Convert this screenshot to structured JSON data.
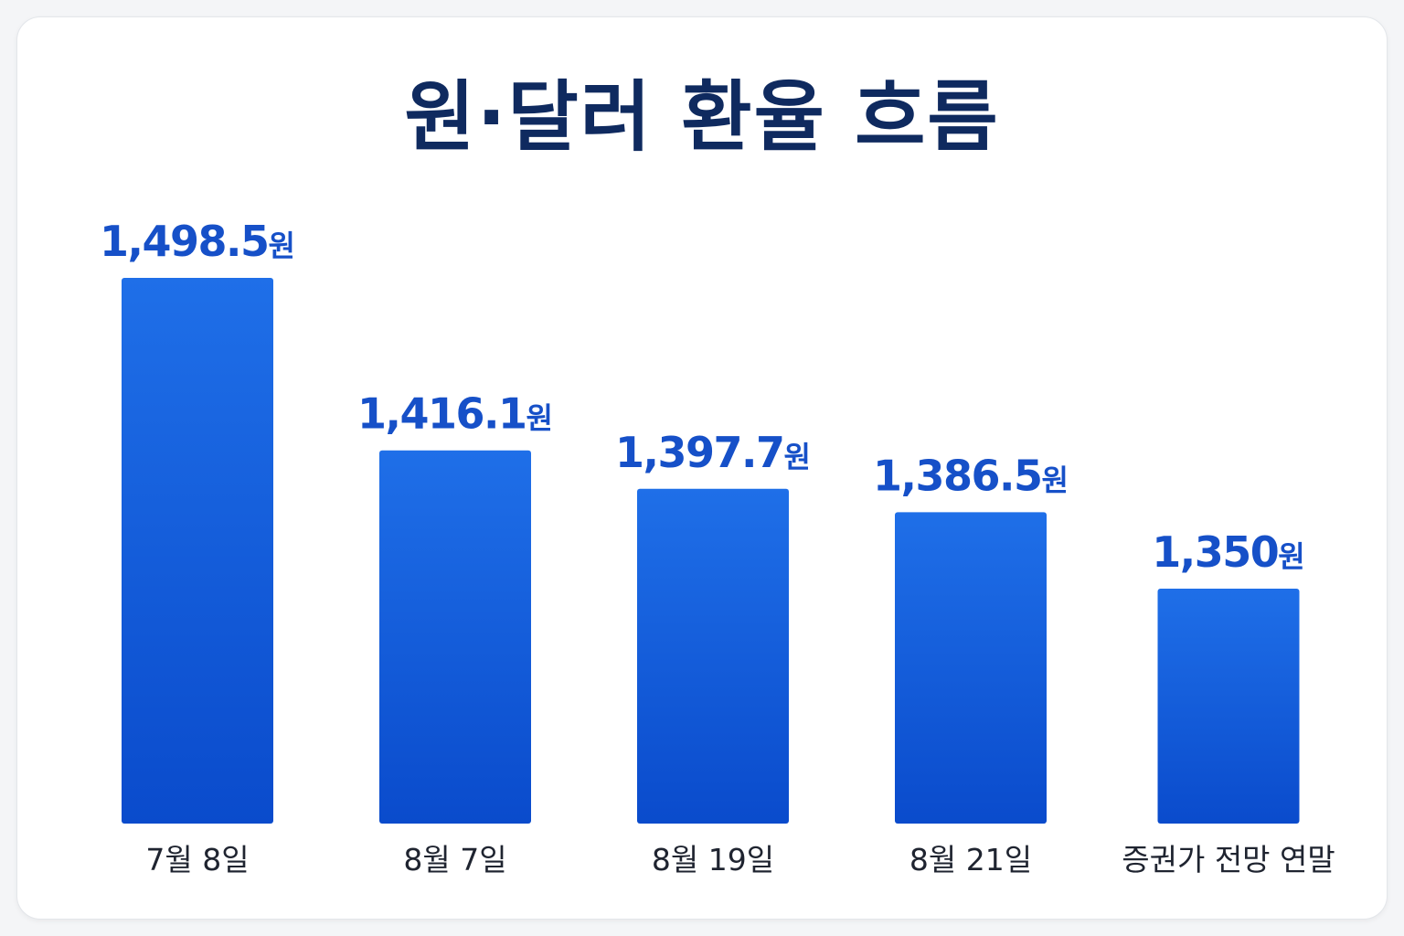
{
  "colors": {
    "title": "#0f2a5f",
    "value_label": "#1650c8",
    "category_label": "#1f2430",
    "bar_top": "#1f6fe8",
    "bar_bottom": "#0a4bcc"
  },
  "chart_data": {
    "type": "bar",
    "title": "원·달러 환율 흐름",
    "xlabel": "",
    "ylabel": "",
    "unit": "원",
    "categories": [
      "7월 8일",
      "8월 7일",
      "8월 19일",
      "8월 21일",
      "증권가 전망 연말"
    ],
    "values": [
      1498.5,
      1416.1,
      1397.7,
      1386.5,
      1350
    ],
    "value_labels": [
      "1,498.5",
      "1,416.1",
      "1,397.7",
      "1,386.5",
      "1,350"
    ],
    "grid": false,
    "legend": "none"
  }
}
